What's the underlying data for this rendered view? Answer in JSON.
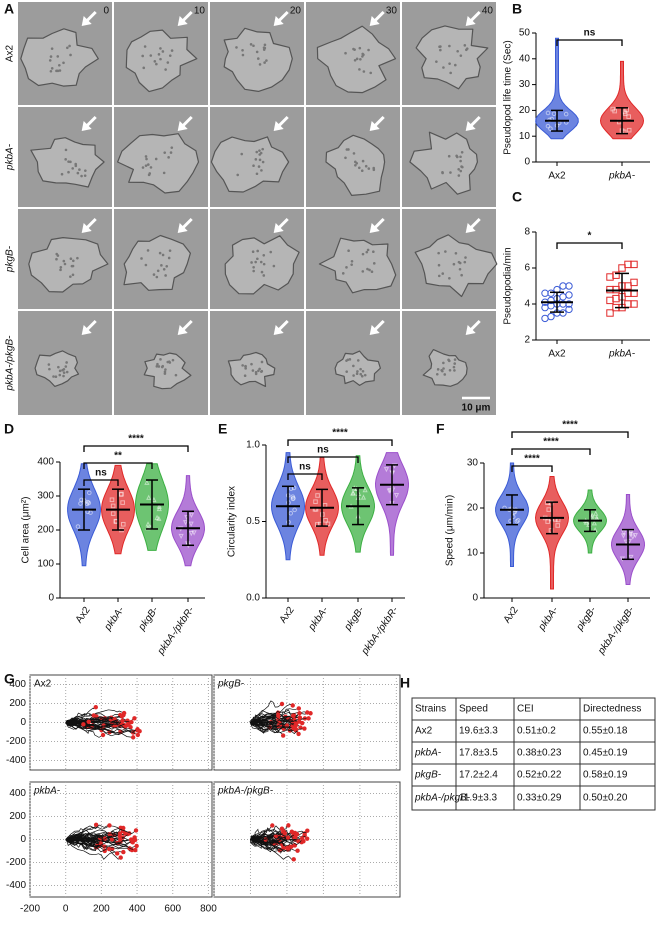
{
  "panel_labels": [
    "A",
    "B",
    "C",
    "D",
    "E",
    "F",
    "G",
    "H"
  ],
  "micrographs": {
    "time_labels": [
      "0",
      "10",
      "20",
      "30",
      "40"
    ],
    "rows": [
      "Ax2",
      "pkbA-",
      "pkgB-",
      "pkbA-/pkgB-"
    ],
    "scale_bar": "10 μm"
  },
  "chart_data": [
    {
      "type": "dotplot",
      "ylabel": "Pseudopod life time (Sec)",
      "categories": [
        "Ax2",
        "pkbA-"
      ],
      "colors": [
        "#3b5bd6",
        "#e02828"
      ],
      "markers": [
        "circle",
        "square"
      ],
      "means": [
        16,
        16
      ],
      "sds": [
        4,
        5
      ],
      "mins": [
        9,
        9
      ],
      "maxs": [
        48,
        39
      ],
      "ylim": [
        0,
        50
      ],
      "yticks": [
        0,
        10,
        20,
        30,
        40,
        50
      ],
      "significance": [
        "ns"
      ]
    },
    {
      "type": "points",
      "ylabel": "Pseudopodia/min",
      "categories": [
        "Ax2",
        "pkbA-"
      ],
      "colors": [
        "#3b5bd6",
        "#e02828"
      ],
      "markers": [
        "circle",
        "square"
      ],
      "values": [
        [
          3.2,
          3.3,
          3.5,
          3.5,
          3.7,
          3.8,
          3.9,
          4.0,
          4.0,
          4.0,
          4.1,
          4.2,
          4.3,
          4.4,
          4.5,
          4.6,
          4.6,
          4.8,
          5.0,
          5.0
        ],
        [
          3.5,
          3.8,
          3.8,
          4.0,
          4.0,
          4.2,
          4.3,
          4.4,
          4.6,
          4.6,
          4.8,
          4.8,
          5.0,
          5.0,
          5.2,
          5.5,
          5.6,
          6.0,
          6.2,
          6.2
        ]
      ],
      "means": [
        4.1,
        4.75
      ],
      "sds": [
        0.55,
        0.95
      ],
      "ylim": [
        2,
        8
      ],
      "yticks": [
        2,
        4,
        6,
        8
      ],
      "significance": [
        "*"
      ]
    },
    {
      "type": "dotplot",
      "ylabel": "Cell area (μm²)",
      "categories": [
        "Ax2",
        "pkbA-",
        "pkgB-",
        "pkbA-/pkbR-"
      ],
      "colors": [
        "#3b5bd6",
        "#e02828",
        "#3cb043",
        "#9b4fcb"
      ],
      "markers": [
        "circle",
        "square",
        "triangle",
        "triangle-down"
      ],
      "means": [
        260,
        260,
        275,
        205
      ],
      "sds": [
        60,
        60,
        72,
        50
      ],
      "mins": [
        95,
        130,
        140,
        95
      ],
      "maxs": [
        395,
        390,
        395,
        360
      ],
      "ylim": [
        0,
        400
      ],
      "yticks": [
        0,
        100,
        200,
        300,
        400
      ],
      "significance": [
        "ns",
        "**",
        "****"
      ]
    },
    {
      "type": "dotplot",
      "ylabel": "Circularity index",
      "categories": [
        "Ax2",
        "pkbA-",
        "pkgB-",
        "pkbA-/pkbR-"
      ],
      "colors": [
        "#3b5bd6",
        "#e02828",
        "#3cb043",
        "#9b4fcb"
      ],
      "markers": [
        "circle",
        "square",
        "triangle",
        "triangle-down"
      ],
      "means": [
        0.6,
        0.59,
        0.6,
        0.74
      ],
      "sds": [
        0.13,
        0.12,
        0.12,
        0.13
      ],
      "mins": [
        0.25,
        0.28,
        0.3,
        0.28
      ],
      "maxs": [
        0.95,
        0.92,
        0.93,
        0.95
      ],
      "ylim": [
        0,
        1
      ],
      "yticks": [
        {
          "value": 0,
          "label": "0.0"
        },
        0.5,
        {
          "value": 1,
          "label": "1.0"
        }
      ],
      "significance": [
        "ns",
        "ns",
        "****"
      ]
    },
    {
      "type": "dotplot",
      "ylabel": "Speed (μm/min)",
      "categories": [
        "Ax2",
        "pkbA-",
        "pkgB-",
        "pkbA-/pkgB-"
      ],
      "colors": [
        "#3b5bd6",
        "#e02828",
        "#3cb043",
        "#9b4fcb"
      ],
      "markers": [
        "circle",
        "square",
        "triangle",
        "triangle-down"
      ],
      "means": [
        19.6,
        17.8,
        17.2,
        11.9
      ],
      "sds": [
        3.3,
        3.5,
        2.4,
        3.3
      ],
      "mins": [
        7,
        2,
        10,
        3
      ],
      "maxs": [
        30,
        27,
        24,
        23
      ],
      "ylim": [
        0,
        30
      ],
      "yticks": [
        0,
        10,
        20,
        30
      ],
      "significance": [
        "****",
        "****",
        "****"
      ]
    },
    {
      "type": "tracks",
      "panels": [
        "Ax2",
        "pkgB-",
        "pkbA-",
        "pkbA-/pkgB-"
      ],
      "track_color": "#111111",
      "endpoint_color": "#e02828",
      "grid": true,
      "xlim": [
        -200,
        820
      ],
      "ylim": [
        -500,
        500
      ],
      "xticks": [
        -200,
        0,
        200,
        400,
        600,
        800
      ],
      "yticks": [
        -400,
        -200,
        0,
        200,
        400
      ]
    }
  ],
  "table": {
    "header": [
      "Strains",
      "Speed",
      "CEI",
      "Directedness"
    ],
    "rows": [
      [
        "Ax2",
        "19.6±3.3",
        "0.51±0.2",
        "0.55±0.18"
      ],
      [
        "pkbA-",
        "17.8±3.5",
        "0.38±0.23",
        "0.45±0.19"
      ],
      [
        "pkgB-",
        "17.2±2.4",
        "0.52±0.22",
        "0.58±0.19"
      ],
      [
        "pkbA-/pkgB-",
        "11.9±3.3",
        "0.33±0.29",
        "0.50±0.20"
      ]
    ]
  }
}
